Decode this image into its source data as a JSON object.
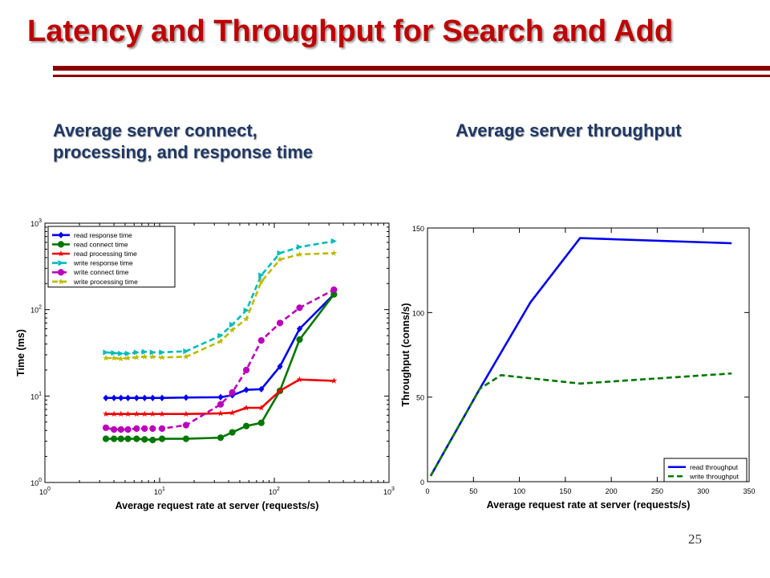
{
  "slide": {
    "title": "Latency and Throughput for Search and Add",
    "left_caption": "Average server connect,\nprocessing, and response time",
    "right_caption": "Average server throughput",
    "slide_number": "25",
    "title_color": "#c00000",
    "rule_color": "#8b0000",
    "caption_color": "#1f3864"
  },
  "chart_data": [
    {
      "type": "line",
      "title": "",
      "xlabel": "Average request rate at server (requests/s)",
      "ylabel": "Time (ms)",
      "xscale": "log",
      "yscale": "log",
      "xlim": [
        1,
        1000
      ],
      "ylim": [
        1,
        1000
      ],
      "x_ticks": [
        {
          "value": 1,
          "base": "10",
          "exp": "0"
        },
        {
          "value": 10,
          "base": "10",
          "exp": "1"
        },
        {
          "value": 100,
          "base": "10",
          "exp": "2"
        },
        {
          "value": 1000,
          "base": "10",
          "exp": "3"
        }
      ],
      "y_ticks": [
        {
          "value": 1,
          "base": "10",
          "exp": "0"
        },
        {
          "value": 10,
          "base": "10",
          "exp": "1"
        },
        {
          "value": 100,
          "base": "10",
          "exp": "2"
        },
        {
          "value": 1000,
          "base": "10",
          "exp": "3"
        }
      ],
      "grid": false,
      "legend_position": "top-left",
      "series": [
        {
          "name": "read response time",
          "color": "#0000ee",
          "dash": "solid",
          "marker": "diamond",
          "x": [
            3.4,
            4,
            4.6,
            5.3,
            6.3,
            7.4,
            8.7,
            10.5,
            17,
            34,
            43,
            57,
            77,
            112,
            166,
            331
          ],
          "y": [
            9.5,
            9.5,
            9.5,
            9.5,
            9.5,
            9.5,
            9.5,
            9.5,
            9.6,
            9.7,
            10.2,
            11.8,
            12,
            22,
            60,
            150
          ]
        },
        {
          "name": "read connect time",
          "color": "#007700",
          "dash": "solid",
          "marker": "circle",
          "x": [
            3.4,
            4,
            4.6,
            5.3,
            6.3,
            7.4,
            8.7,
            10.5,
            17,
            34,
            43,
            57,
            77,
            112,
            166,
            331
          ],
          "y": [
            3.2,
            3.2,
            3.2,
            3.2,
            3.2,
            3.15,
            3.1,
            3.2,
            3.2,
            3.3,
            3.8,
            4.5,
            4.9,
            11.5,
            45,
            150
          ]
        },
        {
          "name": "read processing time",
          "color": "#ee0000",
          "dash": "solid",
          "marker": "star",
          "x": [
            3.4,
            4,
            4.6,
            5.3,
            6.3,
            7.4,
            8.7,
            10.5,
            17,
            34,
            43,
            57,
            77,
            112,
            166,
            331
          ],
          "y": [
            6.2,
            6.2,
            6.2,
            6.2,
            6.2,
            6.2,
            6.2,
            6.2,
            6.2,
            6.3,
            6.4,
            7.3,
            7.3,
            11.5,
            15.5,
            15
          ]
        },
        {
          "name": "write response time",
          "color": "#00bbbb",
          "dash": "dashed",
          "marker": "triangle",
          "x": [
            3.4,
            4,
            4.6,
            5.3,
            6.3,
            7.4,
            8.7,
            10.5,
            17,
            34,
            43,
            57,
            77,
            112,
            166,
            331
          ],
          "y": [
            32,
            31.5,
            31,
            31,
            32,
            32.5,
            32,
            32,
            33,
            50,
            67,
            98,
            250,
            450,
            530,
            620
          ]
        },
        {
          "name": "write connect time",
          "color": "#bb00bb",
          "dash": "dashed",
          "marker": "circle",
          "x": [
            3.4,
            4,
            4.6,
            5.3,
            6.3,
            7.4,
            8.7,
            10.5,
            17,
            34,
            43,
            57,
            77,
            112,
            166,
            331
          ],
          "y": [
            4.3,
            4.1,
            4.1,
            4.1,
            4.2,
            4.2,
            4.2,
            4.2,
            4.6,
            8,
            11,
            20,
            44,
            70,
            105,
            170
          ]
        },
        {
          "name": "write processing time",
          "color": "#bbbb00",
          "dash": "dashed",
          "marker": "star",
          "x": [
            3.4,
            4,
            4.6,
            5.3,
            6.3,
            7.4,
            8.7,
            10.5,
            17,
            34,
            43,
            57,
            77,
            112,
            166,
            331
          ],
          "y": [
            27.5,
            27.5,
            27,
            27.5,
            28,
            28.5,
            28.5,
            28,
            28.5,
            43,
            58,
            78,
            210,
            380,
            435,
            450
          ]
        }
      ]
    },
    {
      "type": "line",
      "title": "",
      "xlabel": "Average request rate at server (requests/s)",
      "ylabel": "Throughput (conns/s)",
      "xscale": "linear",
      "yscale": "linear",
      "xlim": [
        0,
        350
      ],
      "ylim": [
        0,
        150
      ],
      "x_ticks": [
        0,
        50,
        100,
        150,
        200,
        250,
        300,
        350
      ],
      "y_ticks": [
        0,
        50,
        100,
        150
      ],
      "grid": false,
      "legend_position": "bottom-right",
      "series": [
        {
          "name": "read throughput",
          "color": "#0000ee",
          "dash": "solid",
          "x": [
            3.4,
            57,
            112,
            166,
            331
          ],
          "y": [
            3.4,
            55,
            106,
            144,
            141
          ]
        },
        {
          "name": "write throughput",
          "color": "#007700",
          "dash": "dashed",
          "x": [
            3.4,
            57,
            80,
            166,
            331
          ],
          "y": [
            3.4,
            55,
            63,
            58,
            64
          ]
        }
      ]
    }
  ]
}
